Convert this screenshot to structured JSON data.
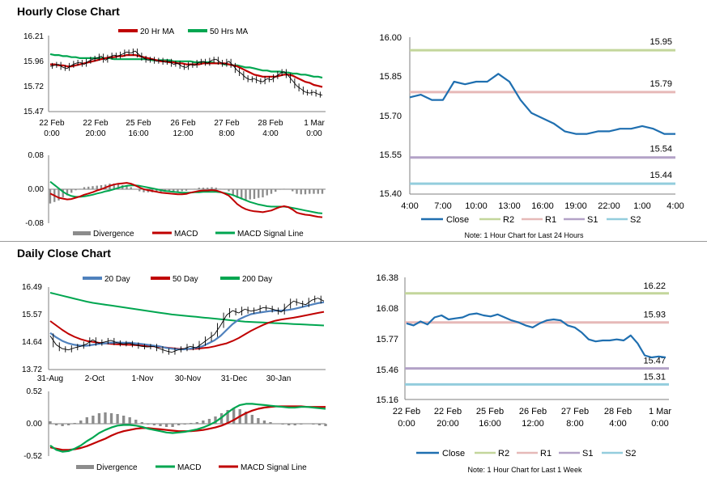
{
  "colors": {
    "red": "#c00000",
    "green": "#00a650",
    "blue": "#1f6fb0",
    "r2": "#c3d69b",
    "r1": "#e6b9b8",
    "s1": "#b3a2c7",
    "s2": "#93cddd",
    "grey": "#8c8c8c",
    "price": "#000000",
    "blue20": "#4f81bd"
  },
  "hourly": {
    "title": "Hourly Close Chart",
    "price_chart": {
      "type": "line",
      "legend": [
        "20 Hr MA",
        "50 Hrs MA"
      ],
      "y_ticks": [
        "16.21",
        "15.96",
        "15.72",
        "15.47"
      ],
      "ylim": [
        15.47,
        16.21
      ],
      "x_ticks": [
        [
          "22 Feb",
          "0:00"
        ],
        [
          "22 Feb",
          "20:00"
        ],
        [
          "25 Feb",
          "16:00"
        ],
        [
          "26 Feb",
          "12:00"
        ],
        [
          "27 Feb",
          "8:00"
        ],
        [
          "28 Feb",
          "4:00"
        ],
        [
          "1 Mar",
          "0:00"
        ]
      ],
      "close": [
        15.91,
        15.92,
        15.93,
        15.9,
        15.89,
        15.92,
        15.94,
        15.95,
        15.93,
        15.96,
        15.98,
        15.99,
        16.01,
        15.97,
        16.0,
        16.02,
        16.01,
        16.03,
        16.05,
        16.04,
        16.06,
        16.02,
        15.99,
        15.97,
        15.98,
        15.96,
        15.97,
        15.95,
        15.96,
        15.93,
        15.94,
        15.91,
        15.9,
        15.93,
        15.92,
        15.95,
        15.96,
        15.94,
        15.97,
        15.98,
        15.95,
        15.93,
        15.96,
        15.92,
        15.87,
        15.84,
        15.8,
        15.78,
        15.79,
        15.77,
        15.76,
        15.79,
        15.78,
        15.81,
        15.84,
        15.86,
        15.82,
        15.77,
        15.72,
        15.69,
        15.66,
        15.65,
        15.66,
        15.64,
        15.63
      ],
      "ma20": [
        15.93,
        15.93,
        15.92,
        15.92,
        15.91,
        15.91,
        15.92,
        15.93,
        15.94,
        15.95,
        15.96,
        15.97,
        15.98,
        15.99,
        16.0,
        16.0,
        16.01,
        16.01,
        16.02,
        16.02,
        16.02,
        16.01,
        16.0,
        15.99,
        15.98,
        15.97,
        15.96,
        15.96,
        15.95,
        15.95,
        15.94,
        15.94,
        15.93,
        15.93,
        15.93,
        15.93,
        15.94,
        15.94,
        15.94,
        15.94,
        15.94,
        15.94,
        15.93,
        15.92,
        15.91,
        15.89,
        15.87,
        15.85,
        15.83,
        15.82,
        15.81,
        15.81,
        15.81,
        15.81,
        15.82,
        15.83,
        15.83,
        15.82,
        15.8,
        15.78,
        15.76,
        15.75,
        15.73,
        15.72,
        15.71
      ],
      "ma50": [
        16.03,
        16.02,
        16.02,
        16.01,
        16.01,
        16.0,
        16.0,
        15.99,
        15.99,
        15.99,
        15.99,
        15.99,
        15.99,
        15.99,
        15.99,
        15.98,
        15.98,
        15.98,
        15.98,
        15.98,
        15.98,
        15.98,
        15.98,
        15.98,
        15.97,
        15.97,
        15.97,
        15.97,
        15.97,
        15.96,
        15.96,
        15.96,
        15.96,
        15.96,
        15.95,
        15.95,
        15.95,
        15.95,
        15.95,
        15.94,
        15.94,
        15.93,
        15.93,
        15.92,
        15.92,
        15.91,
        15.9,
        15.9,
        15.89,
        15.88,
        15.87,
        15.87,
        15.86,
        15.86,
        15.86,
        15.85,
        15.85,
        15.84,
        15.84,
        15.83,
        15.83,
        15.82,
        15.81,
        15.81,
        15.8
      ]
    },
    "macd_chart": {
      "type": "line",
      "legend": [
        "Divergence",
        "MACD",
        "MACD Signal Line"
      ],
      "y_ticks": [
        "0.08",
        "0.00",
        "-0.08"
      ],
      "ylim": [
        -0.08,
        0.08
      ],
      "macd": [
        -0.01,
        -0.015,
        -0.02,
        -0.022,
        -0.024,
        -0.023,
        -0.02,
        -0.017,
        -0.013,
        -0.01,
        -0.007,
        -0.003,
        0.0,
        0.004,
        0.008,
        0.011,
        0.013,
        0.014,
        0.015,
        0.013,
        0.009,
        0.004,
        0.0,
        -0.002,
        -0.004,
        -0.006,
        -0.008,
        -0.009,
        -0.01,
        -0.011,
        -0.012,
        -0.012,
        -0.011,
        -0.008,
        -0.006,
        -0.004,
        -0.003,
        -0.003,
        -0.002,
        -0.003,
        -0.006,
        -0.01,
        -0.015,
        -0.025,
        -0.035,
        -0.042,
        -0.047,
        -0.05,
        -0.052,
        -0.053,
        -0.054,
        -0.052,
        -0.05,
        -0.046,
        -0.042,
        -0.04,
        -0.042,
        -0.048,
        -0.055,
        -0.058,
        -0.06,
        -0.061,
        -0.063,
        -0.065,
        -0.066
      ],
      "signal": [
        0.018,
        0.01,
        0.002,
        -0.006,
        -0.012,
        -0.016,
        -0.018,
        -0.018,
        -0.017,
        -0.015,
        -0.013,
        -0.01,
        -0.008,
        -0.005,
        -0.003,
        0.0,
        0.003,
        0.006,
        0.008,
        0.009,
        0.009,
        0.008,
        0.006,
        0.004,
        0.002,
        0.0,
        -0.002,
        -0.004,
        -0.005,
        -0.006,
        -0.007,
        -0.008,
        -0.008,
        -0.008,
        -0.007,
        -0.007,
        -0.006,
        -0.006,
        -0.006,
        -0.006,
        -0.007,
        -0.009,
        -0.011,
        -0.014,
        -0.018,
        -0.022,
        -0.026,
        -0.03,
        -0.033,
        -0.036,
        -0.038,
        -0.04,
        -0.041,
        -0.041,
        -0.041,
        -0.041,
        -0.042,
        -0.044,
        -0.046,
        -0.048,
        -0.05,
        -0.052,
        -0.054,
        -0.056,
        -0.057
      ]
    },
    "close_chart": {
      "type": "line",
      "y_ticks": [
        "16.00",
        "15.85",
        "15.70",
        "15.55",
        "15.40"
      ],
      "ylim": [
        15.4,
        16.0
      ],
      "x_ticks": [
        "4:00",
        "7:00",
        "10:00",
        "13:00",
        "16:00",
        "19:00",
        "22:00",
        "1:00",
        "4:00"
      ],
      "close": [
        15.77,
        15.78,
        15.76,
        15.76,
        15.83,
        15.82,
        15.83,
        15.83,
        15.86,
        15.83,
        15.76,
        15.71,
        15.69,
        15.67,
        15.64,
        15.63,
        15.63,
        15.64,
        15.64,
        15.65,
        15.65,
        15.66,
        15.65,
        15.63,
        15.63
      ],
      "levels": [
        {
          "name": "R2",
          "value": 15.95,
          "label": "15.95"
        },
        {
          "name": "R1",
          "value": 15.79,
          "label": "15.79"
        },
        {
          "name": "S1",
          "value": 15.54,
          "label": "15.54"
        },
        {
          "name": "S2",
          "value": 15.44,
          "label": "15.44"
        }
      ],
      "legend": [
        "Close",
        "R2",
        "R1",
        "S1",
        "S2"
      ],
      "note": "Note: 1 Hour Chart for Last 24 Hours"
    }
  },
  "daily": {
    "title": "Daily Close Chart",
    "price_chart": {
      "type": "line",
      "legend": [
        "20 Day",
        "50 Day",
        "200 Day"
      ],
      "y_ticks": [
        "16.49",
        "15.57",
        "14.64",
        "13.72"
      ],
      "ylim": [
        13.72,
        16.49
      ],
      "x_ticks": [
        "31-Aug",
        "2-Oct",
        "1-Nov",
        "30-Nov",
        "31-Dec",
        "30-Jan"
      ],
      "close": [
        14.85,
        14.55,
        14.42,
        14.38,
        14.45,
        14.5,
        14.58,
        14.72,
        14.6,
        14.65,
        14.7,
        14.62,
        14.58,
        14.6,
        14.55,
        14.5,
        14.48,
        14.5,
        14.42,
        14.35,
        14.3,
        14.38,
        14.42,
        14.5,
        14.45,
        14.6,
        14.75,
        14.9,
        15.2,
        15.55,
        15.7,
        15.62,
        15.75,
        15.68,
        15.72,
        15.8,
        15.78,
        15.72,
        15.65,
        15.85,
        16.02,
        15.95,
        15.9,
        16.05,
        16.12,
        16.02
      ],
      "ma20": [
        14.95,
        14.8,
        14.68,
        14.6,
        14.55,
        14.52,
        14.52,
        14.55,
        14.58,
        14.6,
        14.62,
        14.63,
        14.62,
        14.62,
        14.6,
        14.58,
        14.55,
        14.52,
        14.5,
        14.45,
        14.42,
        14.4,
        14.4,
        14.42,
        14.45,
        14.5,
        14.6,
        14.7,
        14.85,
        15.05,
        15.25,
        15.4,
        15.5,
        15.58,
        15.62,
        15.65,
        15.68,
        15.7,
        15.7,
        15.72,
        15.75,
        15.8,
        15.85,
        15.9,
        15.95,
        15.98
      ],
      "ma50": [
        15.35,
        15.2,
        15.05,
        14.92,
        14.82,
        14.74,
        14.68,
        14.65,
        14.62,
        14.6,
        14.58,
        14.57,
        14.56,
        14.55,
        14.54,
        14.53,
        14.51,
        14.5,
        14.48,
        14.46,
        14.44,
        14.42,
        14.41,
        14.41,
        14.42,
        14.44,
        14.46,
        14.5,
        14.55,
        14.6,
        14.68,
        14.78,
        14.9,
        15.02,
        15.12,
        15.22,
        15.3,
        15.36,
        15.4,
        15.43,
        15.46,
        15.5,
        15.54,
        15.58,
        15.62,
        15.66
      ],
      "ma200": [
        16.3,
        16.25,
        16.2,
        16.15,
        16.1,
        16.05,
        16.0,
        15.96,
        15.93,
        15.9,
        15.87,
        15.84,
        15.81,
        15.78,
        15.75,
        15.72,
        15.69,
        15.66,
        15.63,
        15.6,
        15.57,
        15.55,
        15.53,
        15.51,
        15.49,
        15.47,
        15.45,
        15.43,
        15.41,
        15.39,
        15.37,
        15.35,
        15.33,
        15.32,
        15.31,
        15.3,
        15.29,
        15.28,
        15.27,
        15.26,
        15.25,
        15.24,
        15.23,
        15.22,
        15.21,
        15.2
      ]
    },
    "macd_chart": {
      "type": "line",
      "legend": [
        "Divergence",
        "MACD",
        "MACD Signal Line"
      ],
      "y_ticks": [
        "0.52",
        "0.00",
        "-0.52"
      ],
      "ylim": [
        -0.52,
        0.52
      ],
      "macd": [
        -0.35,
        -0.42,
        -0.45,
        -0.44,
        -0.4,
        -0.35,
        -0.28,
        -0.22,
        -0.15,
        -0.1,
        -0.06,
        -0.03,
        -0.02,
        -0.02,
        -0.03,
        -0.05,
        -0.08,
        -0.1,
        -0.12,
        -0.14,
        -0.15,
        -0.14,
        -0.13,
        -0.11,
        -0.09,
        -0.06,
        -0.02,
        0.03,
        0.1,
        0.18,
        0.25,
        0.3,
        0.32,
        0.32,
        0.31,
        0.3,
        0.29,
        0.28,
        0.27,
        0.26,
        0.26,
        0.27,
        0.27,
        0.26,
        0.25,
        0.24
      ],
      "signal": [
        -0.38,
        -0.4,
        -0.42,
        -0.42,
        -0.41,
        -0.39,
        -0.36,
        -0.32,
        -0.28,
        -0.24,
        -0.19,
        -0.15,
        -0.12,
        -0.1,
        -0.08,
        -0.07,
        -0.07,
        -0.08,
        -0.09,
        -0.1,
        -0.11,
        -0.12,
        -0.12,
        -0.12,
        -0.11,
        -0.1,
        -0.08,
        -0.06,
        -0.03,
        0.01,
        0.06,
        0.12,
        0.17,
        0.21,
        0.24,
        0.26,
        0.27,
        0.28,
        0.28,
        0.28,
        0.28,
        0.28,
        0.27,
        0.27,
        0.27,
        0.27
      ]
    },
    "close_chart": {
      "type": "line",
      "y_ticks": [
        "16.38",
        "16.08",
        "15.77",
        "15.46",
        "15.16"
      ],
      "ylim": [
        15.16,
        16.38
      ],
      "x_ticks": [
        [
          "22 Feb",
          "0:00"
        ],
        [
          "22 Feb",
          "20:00"
        ],
        [
          "25 Feb",
          "16:00"
        ],
        [
          "26 Feb",
          "12:00"
        ],
        [
          "27 Feb",
          "8:00"
        ],
        [
          "28 Feb",
          "4:00"
        ],
        [
          "1 Mar",
          "0:00"
        ]
      ],
      "close": [
        15.92,
        15.9,
        15.94,
        15.91,
        15.98,
        16.0,
        15.96,
        15.97,
        15.98,
        16.01,
        16.02,
        16.0,
        15.99,
        16.01,
        15.98,
        15.95,
        15.93,
        15.9,
        15.88,
        15.92,
        15.95,
        15.96,
        15.95,
        15.9,
        15.88,
        15.83,
        15.76,
        15.74,
        15.75,
        15.75,
        15.76,
        15.75,
        15.8,
        15.72,
        15.6,
        15.58,
        15.59,
        15.58
      ],
      "levels": [
        {
          "name": "R2",
          "value": 16.22,
          "label": "16.22"
        },
        {
          "name": "R1",
          "value": 15.93,
          "label": "15.93"
        },
        {
          "name": "S1",
          "value": 15.47,
          "label": "15.47"
        },
        {
          "name": "S2",
          "value": 15.31,
          "label": "15.31"
        }
      ],
      "legend": [
        "Close",
        "R2",
        "R1",
        "S1",
        "S2"
      ],
      "note": "Note: 1 Hour Chart for Last 1 Week"
    }
  }
}
